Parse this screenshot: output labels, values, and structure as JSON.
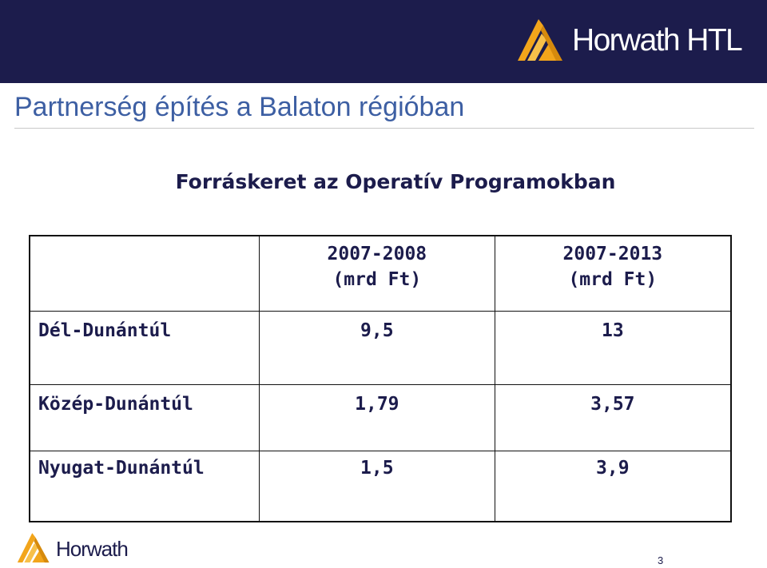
{
  "header": {
    "brand": "Horwath HTL",
    "colors": {
      "band": "#1c1c4c",
      "logo_gold": "#f2a51b",
      "title_blue": "#3d5fa3"
    }
  },
  "slide": {
    "title": "Partnerség építés a Balaton régióban",
    "subtitle": "Forráskeret az Operatív Programokban"
  },
  "table": {
    "headers": [
      {
        "period": "",
        "unit": ""
      },
      {
        "period": "2007-2008",
        "unit": "(mrd Ft)"
      },
      {
        "period": "2007-2013",
        "unit": "(mrd Ft)"
      }
    ],
    "rows": [
      {
        "region": "Dél-Dunántúl",
        "v2008": "9,5",
        "v2013": "13"
      },
      {
        "region": "Közép-Dunántúl",
        "v2008": "1,79",
        "v2013": "3,57"
      },
      {
        "region": "Nyugat-Dunántúl",
        "v2008": "1,5",
        "v2013": "3,9"
      }
    ]
  },
  "footer": {
    "brand": "Horwath",
    "page_number": "3"
  },
  "icons": [
    "horwath-logo-icon",
    "horwath-footer-logo-icon"
  ]
}
